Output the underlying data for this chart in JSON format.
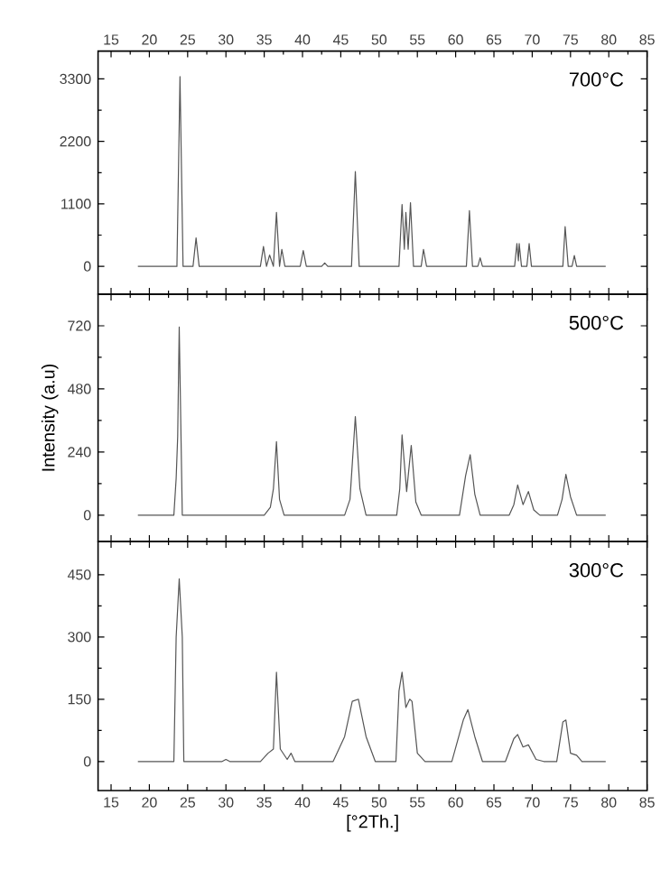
{
  "chart_data": [
    {
      "type": "line",
      "annotations": [
        "700°C"
      ],
      "xlim": [
        13.3,
        85
      ],
      "xticks": [
        15,
        20,
        25,
        30,
        35,
        40,
        45,
        50,
        55,
        60,
        65,
        70,
        75,
        80,
        85
      ],
      "x2lim": [
        13.3,
        85
      ],
      "x2ticks": [
        15,
        20,
        25,
        30,
        35,
        40,
        45,
        50,
        55,
        60,
        65,
        70,
        75,
        80,
        85
      ],
      "ylim": [
        -490,
        3790
      ],
      "yticks": [
        0,
        1100,
        2200,
        3300
      ],
      "tick_labels": "y",
      "series": [
        {
          "color": "#555555",
          "x": [
            18.5,
            23.6,
            24.0,
            24.4,
            25.7,
            26.1,
            26.5,
            34.5,
            34.9,
            35.3,
            35.7,
            36.2,
            36.6,
            37.0,
            37.3,
            37.7,
            39.7,
            40.1,
            40.5,
            42.5,
            42.9,
            43.3,
            46.4,
            46.9,
            47.4,
            52.6,
            53.0,
            53.3,
            53.5,
            53.8,
            54.1,
            54.5,
            55.5,
            55.8,
            56.2,
            61.4,
            61.8,
            62.2,
            62.9,
            63.2,
            63.5,
            67.7,
            68.0,
            68.2,
            68.3,
            68.6,
            69.3,
            69.6,
            69.9,
            74.0,
            74.3,
            74.7,
            75.2,
            75.5,
            75.8,
            79.6
          ],
          "values": [
            0,
            0,
            3340,
            0,
            0,
            500,
            0,
            0,
            350,
            0,
            200,
            0,
            950,
            0,
            300,
            0,
            0,
            280,
            0,
            0,
            60,
            0,
            0,
            1670,
            0,
            0,
            1090,
            300,
            950,
            300,
            1120,
            0,
            0,
            300,
            0,
            0,
            980,
            0,
            0,
            150,
            0,
            0,
            400,
            100,
            400,
            0,
            0,
            400,
            0,
            0,
            700,
            0,
            0,
            190,
            0,
            0
          ]
        }
      ]
    },
    {
      "type": "line",
      "annotations": [
        "500°C"
      ],
      "ylabel": "Intensity (a.u)",
      "xlim": [
        13.3,
        85
      ],
      "xticks": [
        15,
        20,
        25,
        30,
        35,
        40,
        45,
        50,
        55,
        60,
        65,
        70,
        75,
        80,
        85
      ],
      "ylim": [
        -100,
        840
      ],
      "yticks": [
        0,
        240,
        480,
        720
      ],
      "tick_labels": "y",
      "series": [
        {
          "color": "#555555",
          "x": [
            18.5,
            23.2,
            23.5,
            23.7,
            23.9,
            24.3,
            24.6,
            35.0,
            35.8,
            36.2,
            36.6,
            37.0,
            37.6,
            45.5,
            46.2,
            46.9,
            47.5,
            48.3,
            52.3,
            52.7,
            53.0,
            53.6,
            54.2,
            54.8,
            55.5,
            60.5,
            61.3,
            61.9,
            62.5,
            63.2,
            67.0,
            67.6,
            68.1,
            68.8,
            69.5,
            70.2,
            71.0,
            73.3,
            73.9,
            74.4,
            75.0,
            75.8,
            79.6
          ],
          "values": [
            0,
            0,
            140,
            300,
            715,
            0,
            0,
            0,
            30,
            100,
            280,
            60,
            0,
            0,
            60,
            375,
            100,
            0,
            0,
            100,
            305,
            90,
            265,
            50,
            0,
            0,
            150,
            230,
            80,
            0,
            0,
            40,
            115,
            40,
            90,
            20,
            0,
            0,
            60,
            155,
            70,
            0,
            0
          ]
        }
      ]
    },
    {
      "type": "line",
      "annotations": [
        "300°C"
      ],
      "xlabel": "[°2Th.]",
      "xlim": [
        13.3,
        85
      ],
      "xticks": [
        15,
        20,
        25,
        30,
        35,
        40,
        45,
        50,
        55,
        60,
        65,
        70,
        75,
        80,
        85
      ],
      "ylim": [
        -70,
        530
      ],
      "yticks": [
        0,
        150,
        300,
        450
      ],
      "series": [
        {
          "color": "#555555",
          "x": [
            18.5,
            23.2,
            23.5,
            23.9,
            24.3,
            24.5,
            29.5,
            30.0,
            30.5,
            34.5,
            35.5,
            36.2,
            36.6,
            37.1,
            38.0,
            38.5,
            39.0,
            44.0,
            45.5,
            46.5,
            47.3,
            48.3,
            49.5,
            52.2,
            52.6,
            53.0,
            53.5,
            54.0,
            54.3,
            55.0,
            56.0,
            59.5,
            61.0,
            61.6,
            62.5,
            63.5,
            66.5,
            67.6,
            68.1,
            68.8,
            69.5,
            70.5,
            71.5,
            73.2,
            74.0,
            74.4,
            75.0,
            75.8,
            76.5,
            79.6
          ],
          "values": [
            0,
            0,
            300,
            440,
            300,
            0,
            0,
            5,
            0,
            0,
            20,
            30,
            215,
            30,
            5,
            20,
            0,
            0,
            60,
            145,
            150,
            60,
            0,
            0,
            170,
            215,
            130,
            150,
            145,
            20,
            0,
            0,
            100,
            125,
            60,
            0,
            0,
            55,
            65,
            35,
            40,
            5,
            0,
            0,
            95,
            100,
            20,
            15,
            0,
            0
          ]
        }
      ]
    }
  ]
}
